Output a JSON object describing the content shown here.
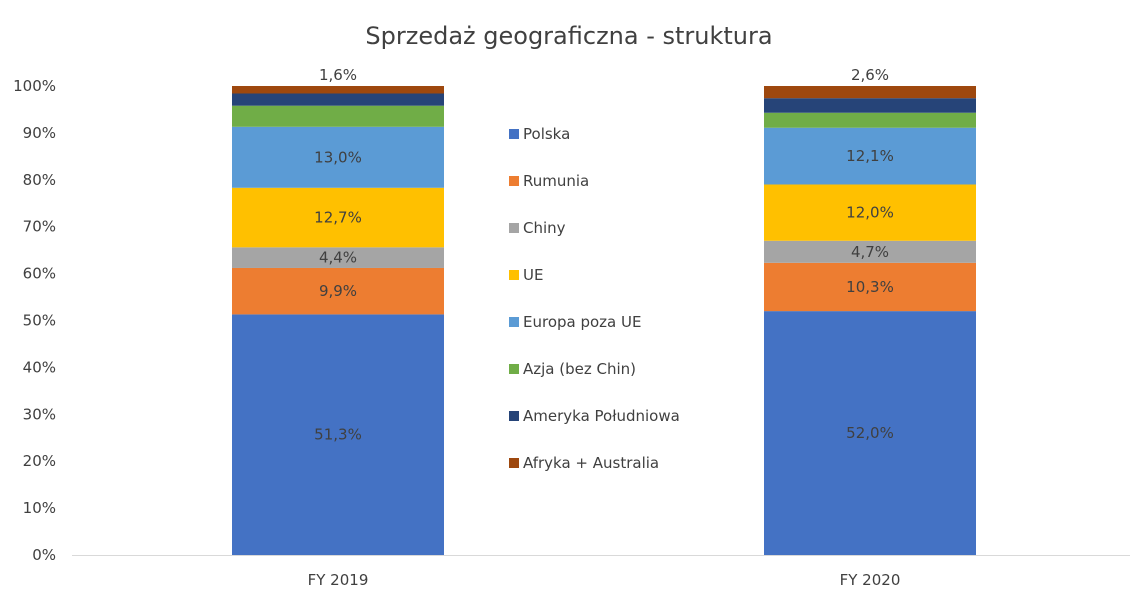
{
  "chart_data": {
    "type": "bar",
    "stacked": true,
    "title": "Sprzedaż geograficzna - struktura",
    "xlabel": "",
    "ylabel": "",
    "ylim": [
      0,
      100
    ],
    "y_ticks": [
      "0%",
      "10%",
      "20%",
      "30%",
      "40%",
      "50%",
      "60%",
      "70%",
      "80%",
      "90%",
      "100%"
    ],
    "categories": [
      "FY 2019",
      "FY 2020"
    ],
    "legend_position": "center",
    "series": [
      {
        "name": "Polska",
        "color": "#4472C4",
        "values": [
          51.3,
          52.0
        ],
        "labels": [
          "51,3%",
          "52,0%"
        ]
      },
      {
        "name": "Rumunia",
        "color": "#ED7D31",
        "values": [
          9.9,
          10.3
        ],
        "labels": [
          "9,9%",
          "10,3%"
        ]
      },
      {
        "name": "Chiny",
        "color": "#A5A5A5",
        "values": [
          4.4,
          4.7
        ],
        "labels": [
          "4,4%",
          "4,7%"
        ]
      },
      {
        "name": "UE",
        "color": "#FFC000",
        "values": [
          12.7,
          12.0
        ],
        "labels": [
          "12,7%",
          "12,0%"
        ]
      },
      {
        "name": "Europa poza UE",
        "color": "#5B9BD5",
        "values": [
          13.0,
          12.1
        ],
        "labels": [
          "13,0%",
          "12,1%"
        ]
      },
      {
        "name": "Azja (bez Chin)",
        "color": "#70AD47",
        "values": [
          4.5,
          3.2
        ],
        "labels": [
          "",
          ""
        ]
      },
      {
        "name": "Ameryka Południowa",
        "color": "#264478",
        "values": [
          2.6,
          3.1
        ],
        "labels": [
          "",
          ""
        ]
      },
      {
        "name": "Afryka + Australia",
        "color": "#9E480E",
        "values": [
          1.6,
          2.6
        ],
        "labels": [
          "1,6%",
          "2,6%"
        ]
      }
    ]
  }
}
